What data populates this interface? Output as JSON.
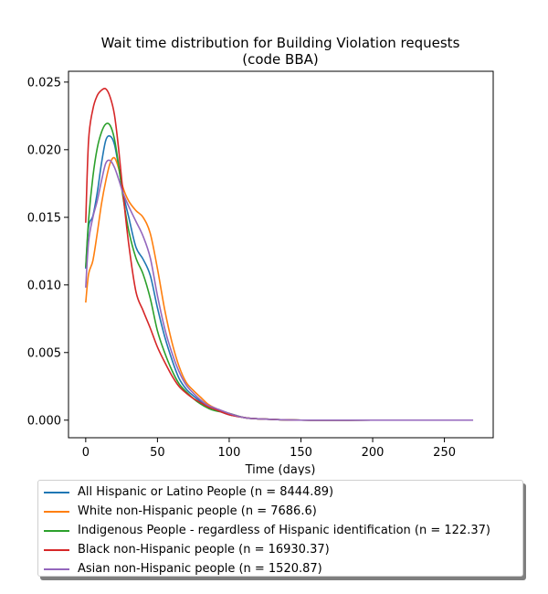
{
  "chart_data": {
    "type": "line",
    "title": [
      "Wait time distribution  for Building Violation  requests",
      "(code BBA)"
    ],
    "xlabel": "Time (days)",
    "ylabel": "",
    "xlim": [
      -12,
      284
    ],
    "ylim": [
      -0.0013,
      0.0258
    ],
    "xticks": [
      0,
      50,
      100,
      150,
      200,
      250
    ],
    "yticks": [
      0.0,
      0.005,
      0.01,
      0.015,
      0.02,
      0.025
    ],
    "xtick_labels": [
      "0",
      "50",
      "100",
      "150",
      "200",
      "250"
    ],
    "ytick_labels": [
      "0.000",
      "0.005",
      "0.010",
      "0.015",
      "0.020",
      "0.025"
    ],
    "grid": false,
    "legend_position": "below",
    "series": [
      {
        "name": "All Hispanic or Latino People (n = 8444.89)",
        "color": "#1f77b4",
        "x": [
          0,
          2,
          5,
          8,
          11,
          14,
          17,
          20,
          23,
          26,
          30,
          35,
          40,
          45,
          50,
          55,
          60,
          65,
          70,
          75,
          80,
          85,
          90,
          100,
          110,
          120,
          150,
          200,
          250,
          270
        ],
        "y": [
          0.0112,
          0.0143,
          0.0151,
          0.0168,
          0.019,
          0.0207,
          0.021,
          0.0204,
          0.0187,
          0.0168,
          0.015,
          0.0128,
          0.0119,
          0.0107,
          0.0083,
          0.0062,
          0.0045,
          0.0031,
          0.0023,
          0.0018,
          0.0014,
          0.0011,
          0.0008,
          0.0004,
          0.0002,
          0.0001,
          0.0,
          0.0,
          0.0,
          0.0
        ]
      },
      {
        "name": "White non-Hispanic people (n = 7686.6)",
        "color": "#ff7f0e",
        "x": [
          0,
          2,
          5,
          8,
          11,
          14,
          17,
          20,
          23,
          26,
          30,
          35,
          40,
          45,
          50,
          55,
          60,
          65,
          70,
          75,
          80,
          85,
          90,
          100,
          110,
          120,
          150,
          200,
          250,
          270
        ],
        "y": [
          0.0087,
          0.0108,
          0.0118,
          0.0138,
          0.016,
          0.0177,
          0.019,
          0.0194,
          0.0186,
          0.0172,
          0.0162,
          0.0155,
          0.015,
          0.0138,
          0.0112,
          0.0082,
          0.0058,
          0.004,
          0.0028,
          0.0022,
          0.0017,
          0.0012,
          0.0009,
          0.0005,
          0.0002,
          0.0001,
          0.0,
          0.0,
          0.0,
          0.0
        ]
      },
      {
        "name": "Indigenous People - regardless of Hispanic identification (n = 122.37)",
        "color": "#2ca02c",
        "x": [
          0,
          2,
          5,
          8,
          11,
          14,
          17,
          20,
          23,
          26,
          30,
          35,
          40,
          45,
          50,
          55,
          60,
          65,
          70,
          75,
          80,
          85,
          90,
          100,
          110,
          120,
          150,
          200,
          250,
          270
        ],
        "y": [
          0.0113,
          0.0148,
          0.018,
          0.0201,
          0.0213,
          0.0219,
          0.0218,
          0.0208,
          0.0188,
          0.0165,
          0.014,
          0.012,
          0.0108,
          0.009,
          0.0066,
          0.005,
          0.0037,
          0.0027,
          0.0021,
          0.0016,
          0.0012,
          0.0009,
          0.0007,
          0.0005,
          0.0002,
          0.0001,
          0.0,
          0.0,
          0.0,
          0.0
        ]
      },
      {
        "name": "Black non-Hispanic people (n = 16930.37)",
        "color": "#d62728",
        "x": [
          0,
          2,
          5,
          8,
          11,
          14,
          17,
          20,
          23,
          26,
          30,
          35,
          40,
          45,
          50,
          55,
          60,
          65,
          70,
          75,
          80,
          85,
          90,
          100,
          110,
          120,
          150,
          200,
          250,
          270
        ],
        "y": [
          0.0146,
          0.0207,
          0.023,
          0.024,
          0.0244,
          0.0245,
          0.0239,
          0.0226,
          0.02,
          0.0168,
          0.013,
          0.0095,
          0.0081,
          0.0068,
          0.0054,
          0.0043,
          0.0033,
          0.0025,
          0.002,
          0.0016,
          0.0013,
          0.001,
          0.0008,
          0.0004,
          0.0002,
          0.0001,
          0.0,
          0.0,
          0.0,
          0.0
        ]
      },
      {
        "name": "Asian non-Hispanic people (n = 1520.87)",
        "color": "#9467bd",
        "x": [
          0,
          2,
          5,
          8,
          11,
          14,
          17,
          20,
          23,
          26,
          30,
          35,
          40,
          45,
          50,
          55,
          60,
          65,
          70,
          75,
          80,
          85,
          90,
          100,
          110,
          120,
          150,
          200,
          250,
          270
        ],
        "y": [
          0.0098,
          0.0132,
          0.015,
          0.0162,
          0.0177,
          0.019,
          0.0192,
          0.0187,
          0.0178,
          0.0168,
          0.0158,
          0.0147,
          0.0136,
          0.012,
          0.0092,
          0.0068,
          0.005,
          0.0036,
          0.0026,
          0.002,
          0.0015,
          0.0011,
          0.0009,
          0.0005,
          0.0002,
          0.0001,
          0.0,
          0.0,
          0.0,
          0.0
        ]
      }
    ]
  }
}
